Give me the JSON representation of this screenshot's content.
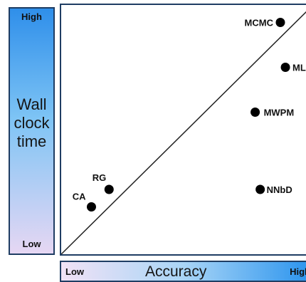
{
  "chart_data": {
    "type": "scatter",
    "xlabel": "Accuracy",
    "ylabel": "Wall clock time",
    "x_low_label": "Low",
    "x_high_label": "High",
    "y_low_label": "Low",
    "y_high_label": "High",
    "xlim": [
      0,
      1
    ],
    "ylim": [
      0,
      1
    ],
    "grid": false,
    "diagonal_line": true,
    "points": [
      {
        "label": "MCMC",
        "x": 0.87,
        "y": 0.93
      },
      {
        "label": "MLD",
        "x": 0.89,
        "y": 0.75
      },
      {
        "label": "MWPM",
        "x": 0.77,
        "y": 0.57
      },
      {
        "label": "NNbD",
        "x": 0.79,
        "y": 0.26
      },
      {
        "label": "RG",
        "x": 0.19,
        "y": 0.26
      },
      {
        "label": "CA",
        "x": 0.12,
        "y": 0.19
      }
    ]
  },
  "colors": {
    "border": "#1f3d63",
    "point": "#000000"
  }
}
